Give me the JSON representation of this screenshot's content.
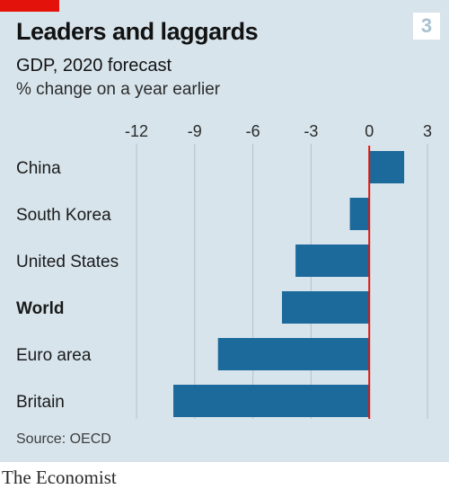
{
  "header": {
    "title": "Leaders and laggards",
    "badge": "3"
  },
  "chart_data": {
    "type": "bar",
    "orientation": "horizontal",
    "title": "GDP, 2020 forecast",
    "subtitle": "% change on a year earlier",
    "categories": [
      "China",
      "South Korea",
      "United States",
      "World",
      "Euro area",
      "Britain"
    ],
    "highlight_category": "World",
    "values": [
      1.8,
      -1.0,
      -3.8,
      -4.5,
      -7.8,
      -10.1
    ],
    "xlim": [
      -12,
      3
    ],
    "xticks": [
      -12,
      -9,
      -6,
      -3,
      0,
      3
    ],
    "grid": true,
    "zero_line_color": "#e3120b",
    "bar_color": "#1c6a9b"
  },
  "footer": {
    "source": "Source: OECD",
    "brand": "The Economist"
  },
  "colors": {
    "background": "#d7e4ec",
    "accent": "#e3120b",
    "bar": "#1c6a9b",
    "grid": "#b9c6cf"
  }
}
